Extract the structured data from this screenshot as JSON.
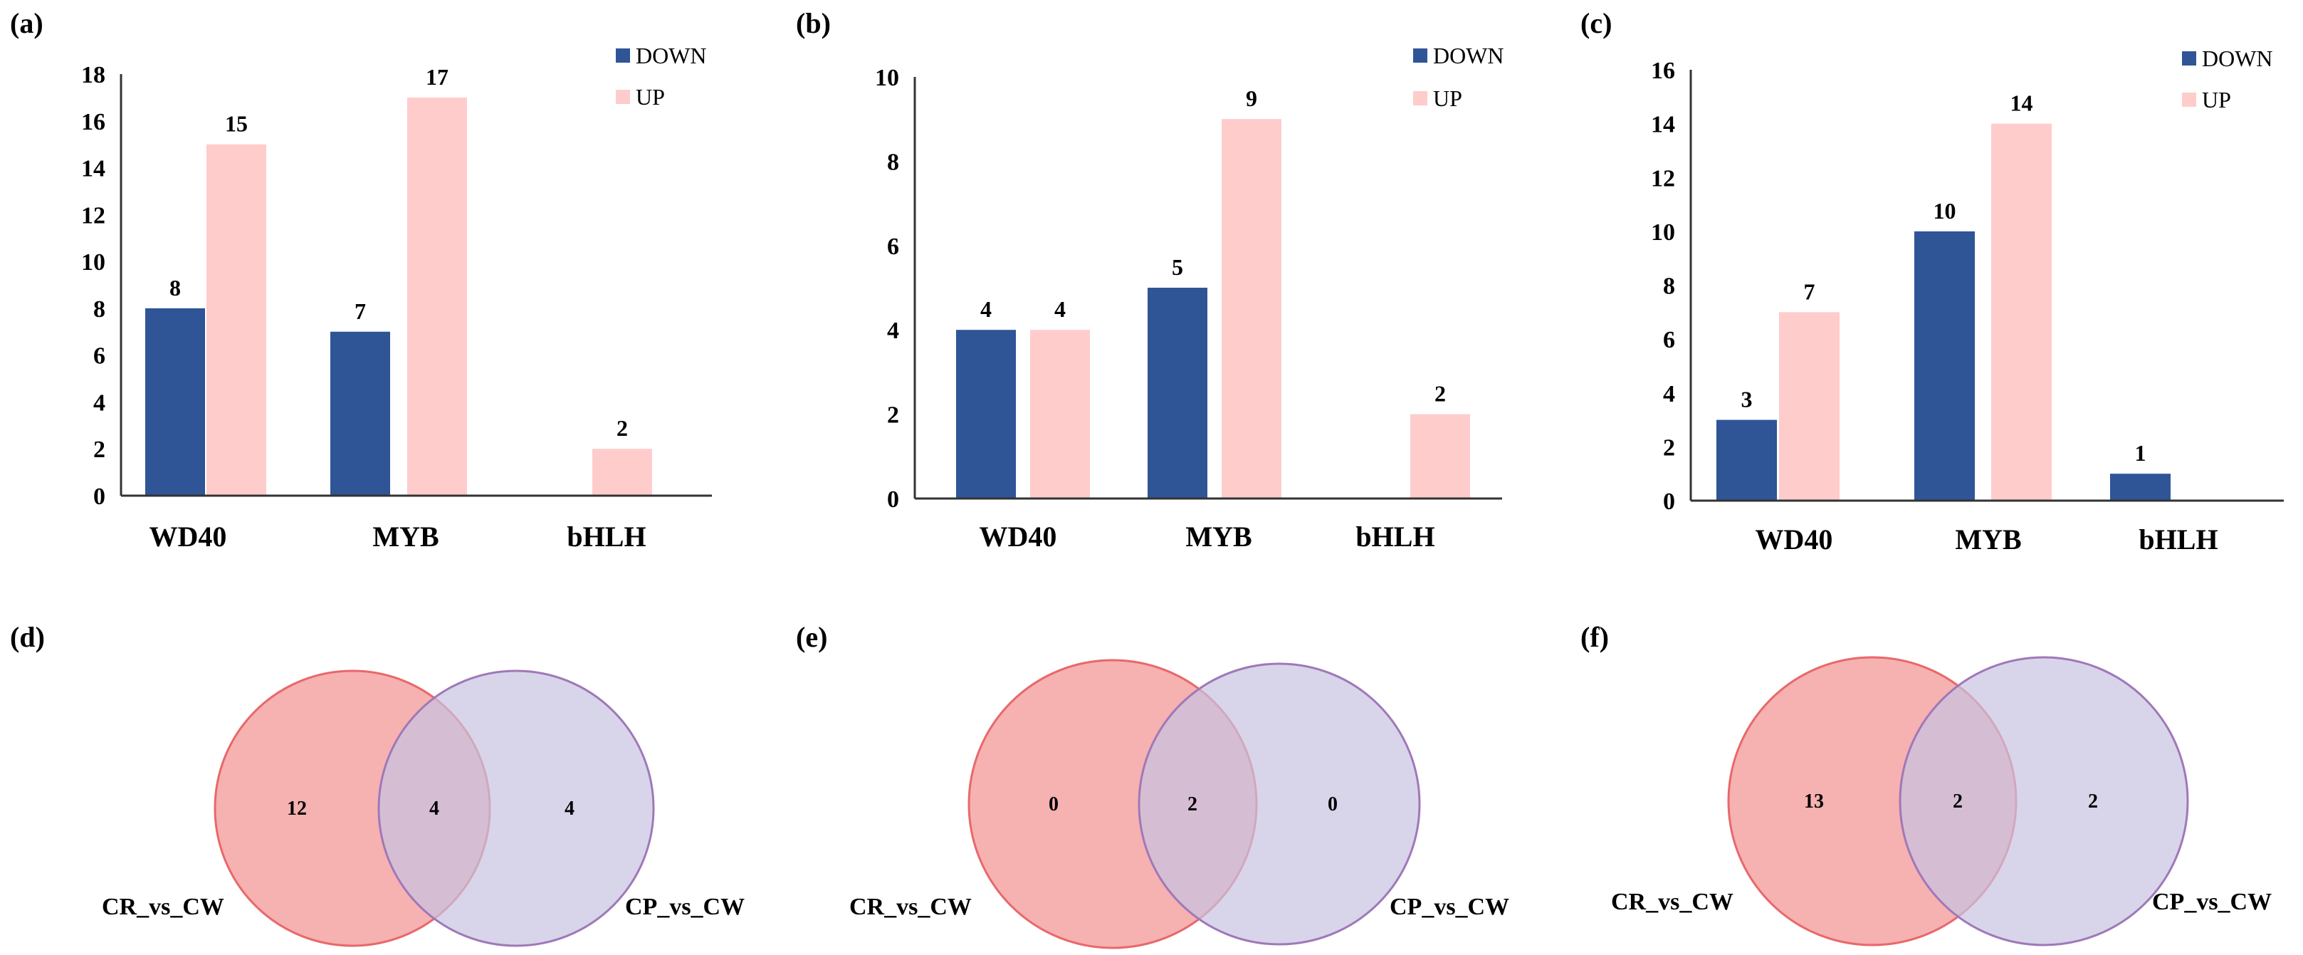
{
  "colors": {
    "down": "#2f5597",
    "up": "#ffcccc",
    "venn_a_fill": "#f4a3a3",
    "venn_a_stroke": "#e8686b",
    "venn_b_fill": "#c7c3e1",
    "venn_b_stroke": "#a078b8"
  },
  "chart_data": [
    {
      "panel": "(a)",
      "type": "bar",
      "categories": [
        "WD40",
        "MYB",
        "bHLH"
      ],
      "series": [
        {
          "name": "DOWN",
          "values": [
            8,
            7,
            null
          ],
          "labels": [
            "8",
            "7",
            ""
          ]
        },
        {
          "name": "UP",
          "values": [
            15,
            17,
            2
          ],
          "labels": [
            "15",
            "17",
            "2"
          ]
        }
      ],
      "ylim": [
        0,
        18
      ],
      "yticks": [
        "0",
        "2",
        "4",
        "6",
        "8",
        "10",
        "12",
        "14",
        "16",
        "18"
      ],
      "ytick_step": 2,
      "legend": "top-right"
    },
    {
      "panel": "(b)",
      "type": "bar",
      "categories": [
        "WD40",
        "MYB",
        "bHLH"
      ],
      "series": [
        {
          "name": "DOWN",
          "values": [
            4,
            5,
            null
          ],
          "labels": [
            "4",
            "5",
            ""
          ]
        },
        {
          "name": "UP",
          "values": [
            4,
            9,
            2
          ],
          "labels": [
            "4",
            "9",
            "2"
          ]
        }
      ],
      "ylim": [
        0,
        10
      ],
      "yticks": [
        "0",
        "2",
        "4",
        "6",
        "8",
        "10"
      ],
      "ytick_step": 2,
      "legend": "top-right"
    },
    {
      "panel": "(c)",
      "type": "bar",
      "categories": [
        "WD40",
        "MYB",
        "bHLH"
      ],
      "series": [
        {
          "name": "DOWN",
          "values": [
            3,
            10,
            1
          ],
          "labels": [
            "3",
            "10",
            "1"
          ]
        },
        {
          "name": "UP",
          "values": [
            7,
            14,
            null
          ],
          "labels": [
            "7",
            "14",
            ""
          ]
        }
      ],
      "ylim": [
        0,
        16
      ],
      "yticks": [
        "0",
        "2",
        "4",
        "6",
        "8",
        "10",
        "12",
        "14",
        "16"
      ],
      "ytick_step": 2,
      "legend": "top-right"
    }
  ],
  "venn": [
    {
      "panel": "(d)",
      "set_a": "CR_vs_CW",
      "set_b": "CP_vs_CW",
      "only_a": "12",
      "both": "4",
      "only_b": "4"
    },
    {
      "panel": "(e)",
      "set_a": "CR_vs_CW",
      "set_b": "CP_vs_CW",
      "only_a": "0",
      "both": "2",
      "only_b": "0"
    },
    {
      "panel": "(f)",
      "set_a": "CR_vs_CW",
      "set_b": "CP_vs_CW",
      "only_a": "13",
      "both": "2",
      "only_b": "2"
    }
  ]
}
